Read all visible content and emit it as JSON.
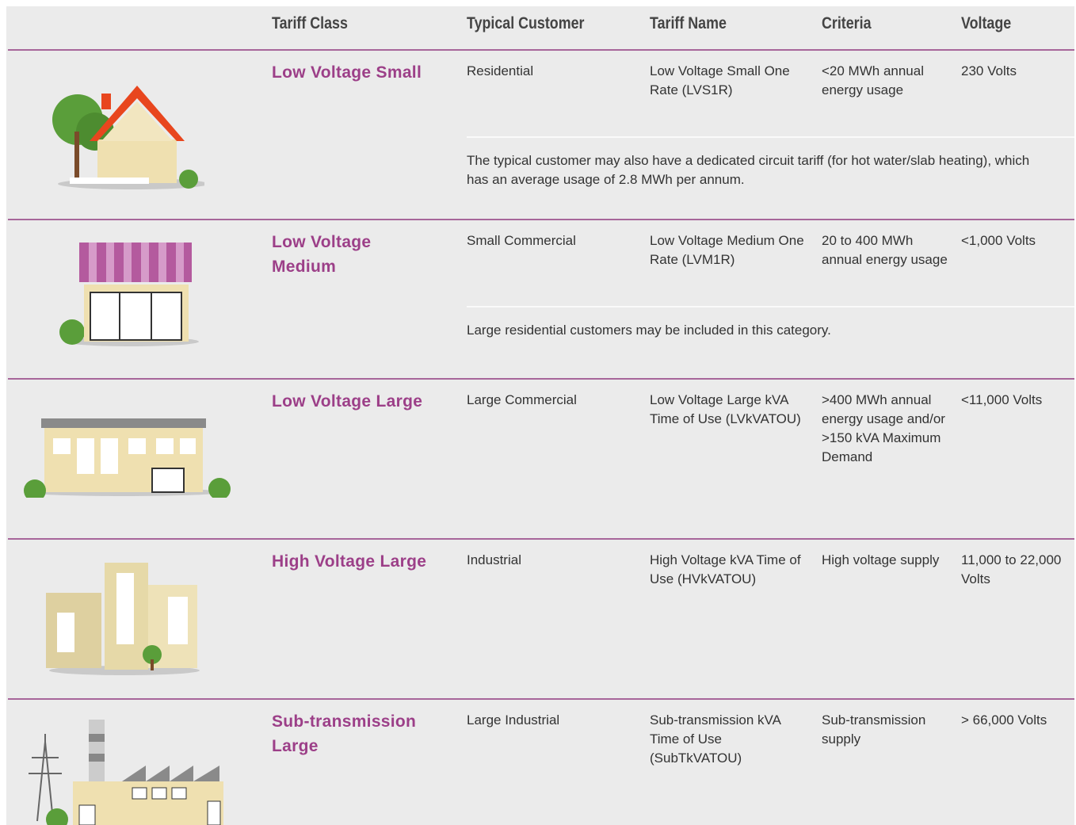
{
  "header": {
    "columns": [
      "Tariff Class",
      "Typical Customer",
      "Tariff Name",
      "Criteria",
      "Voltage"
    ]
  },
  "rows": [
    {
      "tariff_class": "Low Voltage Small",
      "typical_customer": "Residential",
      "tariff_name": "Low Voltage Small One Rate (LVS1R)",
      "criteria": "<20 MWh annual energy usage",
      "voltage": "230 Volts",
      "note": "The typical customer may also have a dedicated circuit tariff (for hot water/slab heating), which has an average usage of 2.8 MWh per annum."
    },
    {
      "tariff_class": "Low Voltage Medium",
      "typical_customer": "Small Commercial",
      "tariff_name": "Low Voltage Medium One Rate (LVM1R)",
      "criteria": "20 to 400 MWh annual energy usage",
      "voltage": "<1,000 Volts",
      "note": "Large residential customers may be included in this category."
    },
    {
      "tariff_class": "Low Voltage Large",
      "typical_customer": "Large Commercial",
      "tariff_name": "Low Voltage Large kVA Time of Use (LVkVATOU)",
      "criteria": ">400 MWh annual energy usage and/or >150 kVA Maximum Demand",
      "voltage": "<11,000 Volts"
    },
    {
      "tariff_class": "High Voltage Large",
      "typical_customer": "Industrial",
      "tariff_name": "High Voltage kVA Time of Use (HVkVATOU)",
      "criteria": "High voltage supply",
      "voltage": "11,000 to 22,000 Volts"
    },
    {
      "tariff_class": "Sub-transmission Large",
      "typical_customer": "Large Industrial",
      "tariff_name": "Sub-transmission kVA Time of Use (SubTkVATOU)",
      "criteria": "Sub-transmission supply",
      "voltage": "> 66,000 Volts"
    }
  ]
}
